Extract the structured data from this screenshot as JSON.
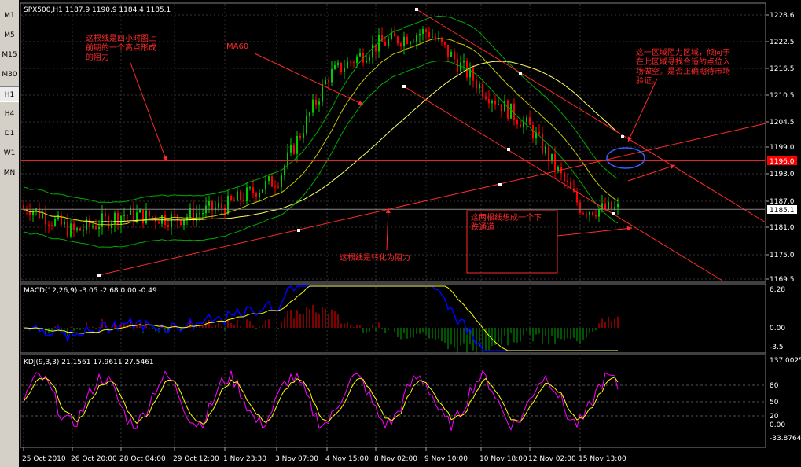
{
  "timeframes": [
    "M1",
    "M5",
    "M15",
    "M30",
    "H1",
    "H4",
    "D1",
    "W1",
    "MN"
  ],
  "active_timeframe": "H1",
  "main_header": "SPX500,H1  1187.9 1190.9 1184.4 1185.1",
  "macd_header": "MACD(12,26,9) -3.05 -2.68 0.00 -0.49",
  "kdj_header": "KDJ(9,3,3) 21.1561 17.9611 27.5461",
  "price_axis": [
    "1228.6",
    "1222.5",
    "1216.5",
    "1210.5",
    "1204.5",
    "1199.0",
    "1193.0",
    "1187.0",
    "1181.0",
    "1175.0",
    "1169.5"
  ],
  "macd_axis": [
    "6.28",
    "0.00",
    "-3.5"
  ],
  "kdj_axis": [
    "137.0025",
    "80",
    "50",
    "20",
    "0.00",
    "-33.8764"
  ],
  "time_axis": [
    "25 Oct 2010",
    "26 Oct 20:00",
    "28 Oct 04:00",
    "29 Oct 12:00",
    "1 Nov 23:30",
    "3 Nov 07:00",
    "4 Nov 15:00",
    "8 Nov 02:00",
    "9 Nov 10:00",
    "10 Nov 18:00",
    "12 Nov 02:00",
    "15 Nov 13:00"
  ],
  "price_tags": {
    "red": "1196.0",
    "white": "1185.1"
  },
  "annotations": {
    "a1": [
      "这根线是四小时图上",
      "前期的一个高点形成",
      "的阻力"
    ],
    "a2": "MA60",
    "a3": [
      "这一区域阻力区域，倾向于",
      "在此区域寻找合适的点位入",
      "场做空。是否正确期待市场",
      "验证。"
    ],
    "a4": [
      "这两根线想成一个下",
      "跌通道"
    ],
    "a5": "这根线是转化为阻力"
  },
  "colors": {
    "candle_up": "#00cc00",
    "candle_down": "#ff0000",
    "ma_yellow": "#ffff66",
    "bb_green": "#00aa00",
    "annotation": "#ff2a2a",
    "macd_signal": "#ffff00",
    "macd_main": "#0000ff",
    "k_line": "#ff00ff",
    "d_line": "#ffff00"
  },
  "chart_data": {
    "type": "line",
    "title": "SPX500,H1",
    "x": [
      "25 Oct 2010",
      "26 Oct 20:00",
      "28 Oct 04:00",
      "29 Oct 12:00",
      "1 Nov 23:30",
      "3 Nov 07:00",
      "4 Nov 15:00",
      "8 Nov 02:00",
      "9 Nov 10:00",
      "10 Nov 18:00",
      "12 Nov 02:00",
      "15 Nov 13:00"
    ],
    "series": [
      {
        "name": "close",
        "values": [
          1186,
          1180,
          1184,
          1183,
          1186,
          1192,
          1215,
          1222,
          1225,
          1212,
          1203,
          1185.1
        ]
      }
    ],
    "ylim": [
      1169.5,
      1228.6
    ]
  }
}
